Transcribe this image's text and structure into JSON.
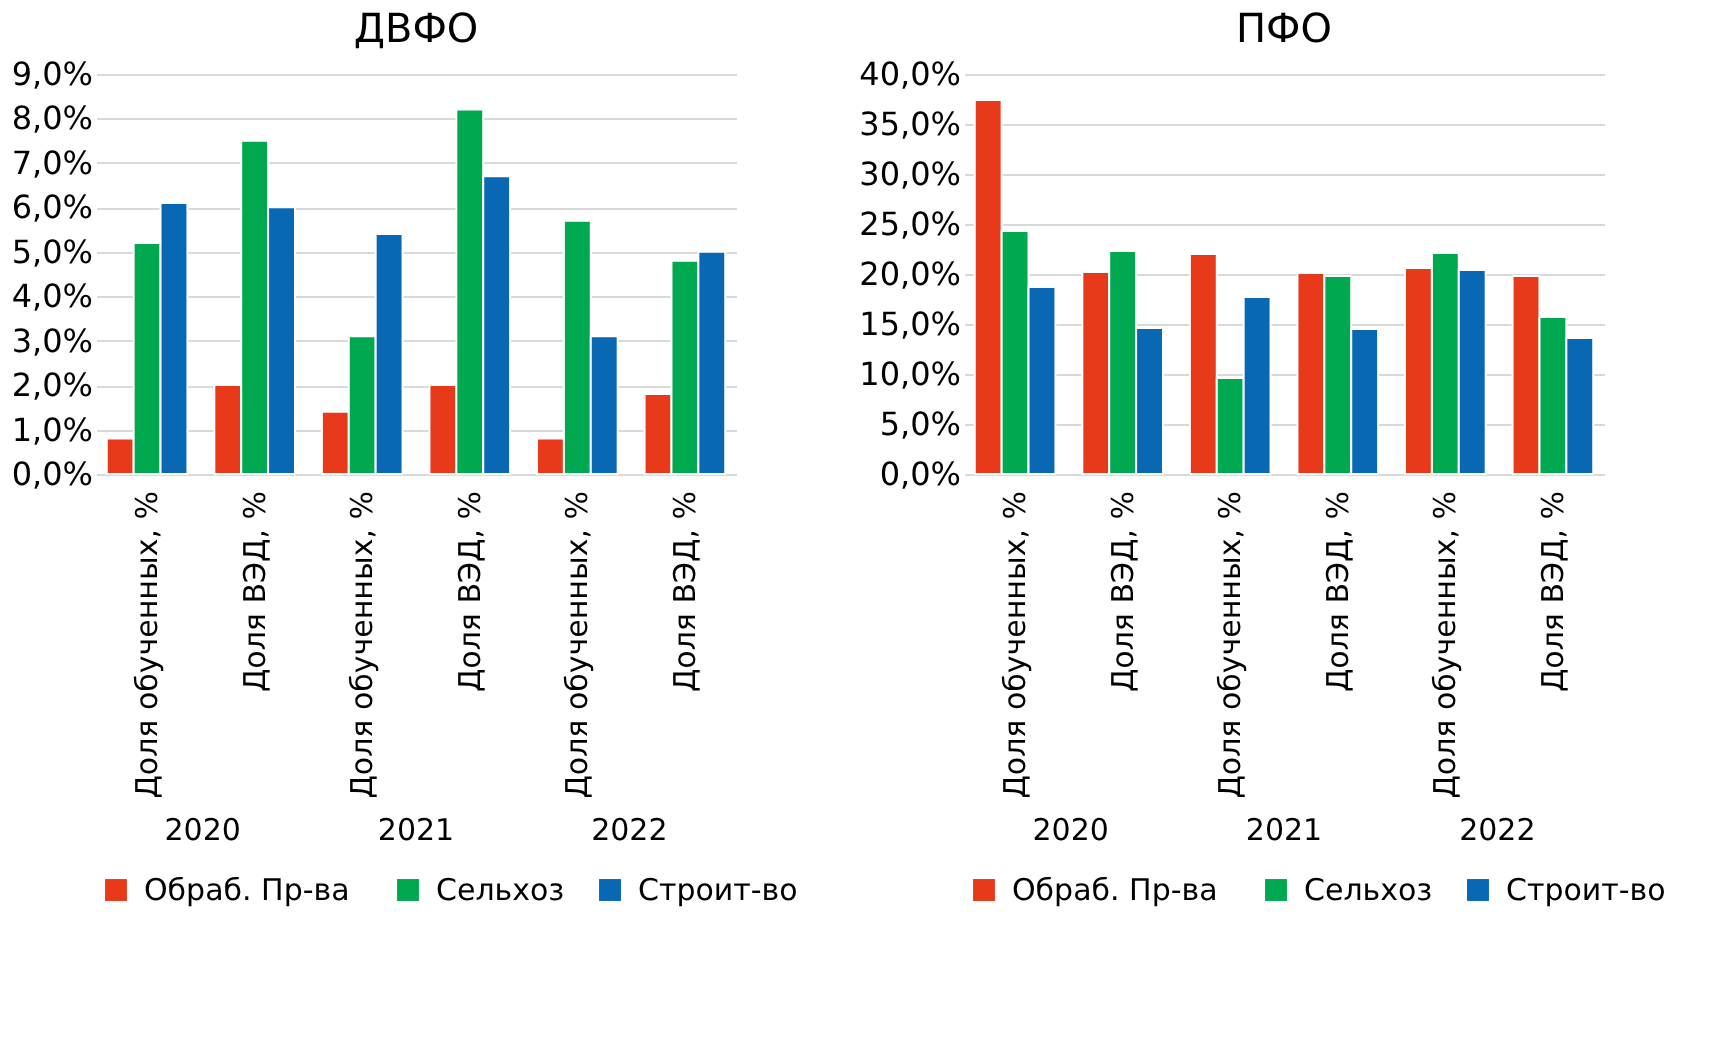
{
  "chart_data": [
    {
      "type": "bar",
      "title": "ДВФО",
      "categories": [
        "Доля обученных, %",
        "Доля ВЭД, %",
        "Доля обученных, %",
        "Доля ВЭД, %",
        "Доля обученных, %",
        "Доля ВЭД, %"
      ],
      "annotations": [
        "2020",
        "2021",
        "2022"
      ],
      "series": [
        {
          "name": "Обраб. Пр-ва",
          "color": "#e8391a",
          "values": [
            0.8,
            2.0,
            1.4,
            2.0,
            0.8,
            1.8
          ]
        },
        {
          "name": "Сельхоз",
          "color": "#00a84f",
          "values": [
            5.2,
            7.5,
            3.1,
            8.2,
            5.7,
            4.8
          ]
        },
        {
          "name": "Строит-во",
          "color": "#0868b4",
          "values": [
            6.1,
            6.0,
            5.4,
            6.7,
            3.1,
            5.0
          ]
        }
      ],
      "ylim": [
        0,
        9
      ],
      "yticks": [
        {
          "value": 0,
          "label": "0,0%"
        },
        {
          "value": 1,
          "label": "1,0%"
        },
        {
          "value": 2,
          "label": "2,0%"
        },
        {
          "value": 3,
          "label": "3,0%"
        },
        {
          "value": 4,
          "label": "4,0%"
        },
        {
          "value": 5,
          "label": "5,0%"
        },
        {
          "value": 6,
          "label": "6,0%"
        },
        {
          "value": 7,
          "label": "7,0%"
        },
        {
          "value": 8,
          "label": "8,0%"
        },
        {
          "value": 9,
          "label": "9,0%"
        }
      ],
      "grid": "y",
      "legend": "bottom"
    },
    {
      "type": "bar",
      "title": "ПФО",
      "categories": [
        "Доля обученных, %",
        "Доля ВЭД, %",
        "Доля обученных, %",
        "Доля ВЭД, %",
        "Доля обученных, %",
        "Доля ВЭД, %"
      ],
      "annotations": [
        "2020",
        "2021",
        "2022"
      ],
      "series": [
        {
          "name": "Обраб. Пр-ва",
          "color": "#e8391a",
          "values": [
            37.4,
            20.2,
            22.0,
            20.1,
            20.6,
            19.8
          ]
        },
        {
          "name": "Сельхоз",
          "color": "#00a84f",
          "values": [
            24.3,
            22.3,
            9.6,
            19.8,
            22.1,
            15.7
          ]
        },
        {
          "name": "Строит-во",
          "color": "#0868b4",
          "values": [
            18.7,
            14.6,
            17.7,
            14.5,
            20.4,
            13.6
          ]
        }
      ],
      "ylim": [
        0,
        40
      ],
      "yticks": [
        {
          "value": 0,
          "label": "0,0%"
        },
        {
          "value": 5,
          "label": "5,0%"
        },
        {
          "value": 10,
          "label": "10,0%"
        },
        {
          "value": 15,
          "label": "15,0%"
        },
        {
          "value": 20,
          "label": "20,0%"
        },
        {
          "value": 25,
          "label": "25,0%"
        },
        {
          "value": 30,
          "label": "30,0%"
        },
        {
          "value": 35,
          "label": "35,0%"
        },
        {
          "value": 40,
          "label": "40,0%"
        }
      ],
      "grid": "y",
      "legend": "bottom"
    }
  ]
}
